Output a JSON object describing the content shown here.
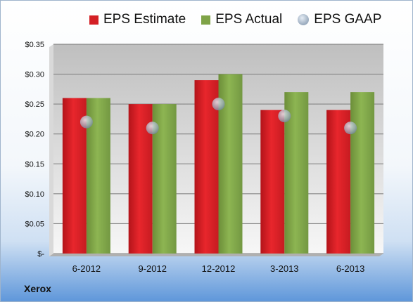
{
  "chart_data": {
    "type": "bar",
    "categories": [
      "6-2012",
      "9-2012",
      "12-2012",
      "3-2013",
      "6-2013"
    ],
    "series": [
      {
        "name": "EPS Estimate",
        "values": [
          0.26,
          0.25,
          0.29,
          0.24,
          0.24
        ],
        "color": "#d42025"
      },
      {
        "name": "EPS Actual",
        "values": [
          0.26,
          0.25,
          0.3,
          0.27,
          0.27
        ],
        "color": "#7fa347"
      },
      {
        "name": "EPS GAAP",
        "values": [
          0.22,
          0.21,
          0.25,
          0.23,
          0.21
        ],
        "color": "#a9b8c9",
        "marker": "circle"
      }
    ],
    "yticks": [
      "$-",
      "$0.05",
      "$0.10",
      "$0.15",
      "$0.20",
      "$0.25",
      "$0.30",
      "$0.35"
    ],
    "ylim": [
      0,
      0.35
    ],
    "grid": true,
    "legend": "top"
  },
  "legend": {
    "estimate": "EPS Estimate",
    "actual": "EPS Actual",
    "gaap": "EPS GAAP"
  },
  "company": "Xerox"
}
